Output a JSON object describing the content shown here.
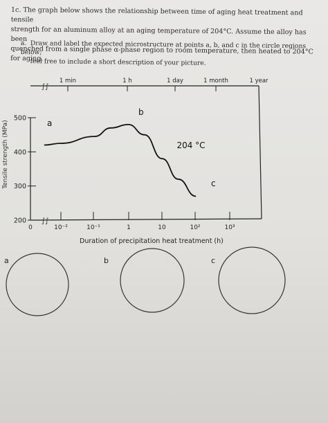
{
  "question": {
    "line1": "1c. The graph below shows the relationship between time of aging heat treatment and tensile",
    "line2": "strength for an aluminum alloy at an aging temperature of 204°C. Assume the alloy has been",
    "line3": "quenched from a single phase α-phase region to room temperature, then heated to 204°C for aging.",
    "item_a_num": "a.",
    "item_a_line1": "Draw and label the expected microstructure at points a, b, and c in the circle regions below;",
    "item_a_line2": "feel free to include a short description of your picture."
  },
  "chart_data": {
    "type": "line",
    "title": "",
    "xlabel": "Duration of precipitation heat treatment (h)",
    "ylabel": "Tensile strength (MPa)",
    "x_scale": "log",
    "ylim": [
      200,
      500
    ],
    "top_ticks": [
      "1 min",
      "1 h",
      "1 day",
      "1 month",
      "1 year"
    ],
    "bottom_ticks": [
      "0",
      "10⁻²",
      "10⁻¹",
      "1",
      "10",
      "10²",
      "10³"
    ],
    "y_ticks": [
      "500",
      "400",
      "300",
      "200"
    ],
    "annotation": "204 °C",
    "points": [
      {
        "label": "a"
      },
      {
        "label": "b"
      },
      {
        "label": "c"
      }
    ],
    "series": [
      {
        "x": [
          0.0032,
          0.01,
          0.1,
          0.3,
          1,
          3,
          10,
          30,
          100
        ],
        "y": [
          420,
          425,
          445,
          470,
          480,
          450,
          380,
          320,
          270
        ]
      }
    ]
  },
  "circles": {
    "a": "a",
    "b": "b",
    "c": "c"
  }
}
